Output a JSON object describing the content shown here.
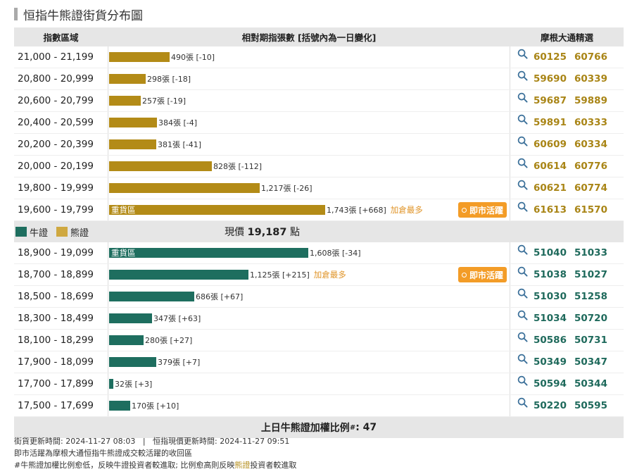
{
  "title": "恒指牛熊證街貨分布圖",
  "header": {
    "col_range": "指數區域",
    "col_bars": "相對期指張數 [括號內為一日變化]",
    "col_ms": "摩根大通精選"
  },
  "bear_rows": [
    {
      "range": "21,000 - 21,199",
      "value": 490,
      "label": "490張 [-10]",
      "codes": [
        "60125",
        "60766"
      ]
    },
    {
      "range": "20,800 - 20,999",
      "value": 298,
      "label": "298張 [-18]",
      "codes": [
        "59690",
        "60339"
      ]
    },
    {
      "range": "20,600 - 20,799",
      "value": 257,
      "label": "257張 [-19]",
      "codes": [
        "59687",
        "59889"
      ]
    },
    {
      "range": "20,400 - 20,599",
      "value": 384,
      "label": "384張 [-4]",
      "codes": [
        "59891",
        "60333"
      ]
    },
    {
      "range": "20,200 - 20,399",
      "value": 381,
      "label": "381張 [-41]",
      "codes": [
        "60609",
        "60334"
      ]
    },
    {
      "range": "20,000 - 20,199",
      "value": 828,
      "label": "828張 [-112]",
      "codes": [
        "60614",
        "60776"
      ]
    },
    {
      "range": "19,800 - 19,999",
      "value": 1217,
      "label": "1,217張 [-26]",
      "codes": [
        "60621",
        "60774"
      ]
    },
    {
      "range": "19,600 - 19,799",
      "value": 1743,
      "label": "1,743張 [+668]",
      "heavy": "重貨區",
      "most": "加倉最多",
      "badge": "即市活躍",
      "codes": [
        "61613",
        "61570"
      ]
    }
  ],
  "legend": {
    "bull": "牛證",
    "bear": "熊證",
    "price_prefix": "現價",
    "price": "19,187",
    "price_suffix": "點"
  },
  "bull_rows": [
    {
      "range": "18,900 - 19,099",
      "value": 1608,
      "label": "1,608張 [-34]",
      "heavy": "重貨區",
      "codes": [
        "51040",
        "51033"
      ]
    },
    {
      "range": "18,700 - 18,899",
      "value": 1125,
      "label": "1,125張 [+215]",
      "most": "加倉最多",
      "badge": "即市活躍",
      "codes": [
        "51038",
        "51027"
      ]
    },
    {
      "range": "18,500 - 18,699",
      "value": 686,
      "label": "686張 [+67]",
      "codes": [
        "51030",
        "51258"
      ]
    },
    {
      "range": "18,300 - 18,499",
      "value": 347,
      "label": "347張 [+63]",
      "codes": [
        "51034",
        "50720"
      ]
    },
    {
      "range": "18,100 - 18,299",
      "value": 280,
      "label": "280張 [+27]",
      "codes": [
        "50586",
        "50731"
      ]
    },
    {
      "range": "17,900 - 18,099",
      "value": 379,
      "label": "379張 [+7]",
      "codes": [
        "50349",
        "50347"
      ]
    },
    {
      "range": "17,700 - 17,899",
      "value": 32,
      "label": "32張 [+3]",
      "codes": [
        "50594",
        "50344"
      ]
    },
    {
      "range": "17,500 - 17,699",
      "value": 170,
      "label": "170張 [+10]",
      "codes": [
        "50220",
        "50595"
      ]
    }
  ],
  "footer": {
    "label": "上日牛熊證加權比例",
    "mark": "#",
    "value": ": 47"
  },
  "notes": {
    "line1": "街貨更新時間: 2024-11-27 08:03   |   恒指現價更新時間: 2024-11-27 09:51",
    "line2": "即市活躍為摩根大通恒指牛熊證成交較活躍的收回區",
    "line3_a": "#牛熊證加權比例愈低，反映牛證投資者較進取; 比例愈高則反映",
    "line3_hl": "熊證",
    "line3_b": "投資者較進取"
  },
  "colors": {
    "bear": "#b38b17",
    "bull": "#1e6e5f",
    "badge": "#f39c27"
  },
  "icons": {
    "magnifier": "search-icon"
  }
}
